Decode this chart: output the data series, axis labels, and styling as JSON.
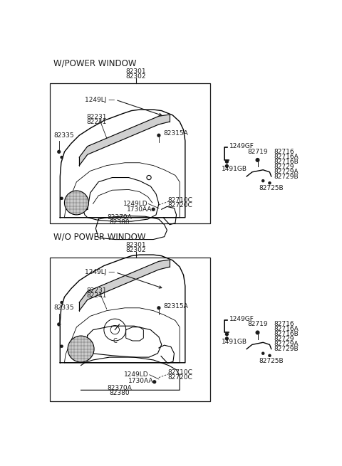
{
  "bg_color": "#ffffff",
  "section1_label": "W/POWER WINDOW",
  "section2_label": "W/O POWER WINDOW",
  "fs_section": 8.5,
  "fs_part": 6.5,
  "right_labels_top": [
    "82716",
    "82716A",
    "82716B",
    "82729",
    "82729A",
    "82729B"
  ],
  "right_labels_bot": [
    "82716",
    "82716A",
    "82716B",
    "82729",
    "82729A",
    "82729B"
  ]
}
